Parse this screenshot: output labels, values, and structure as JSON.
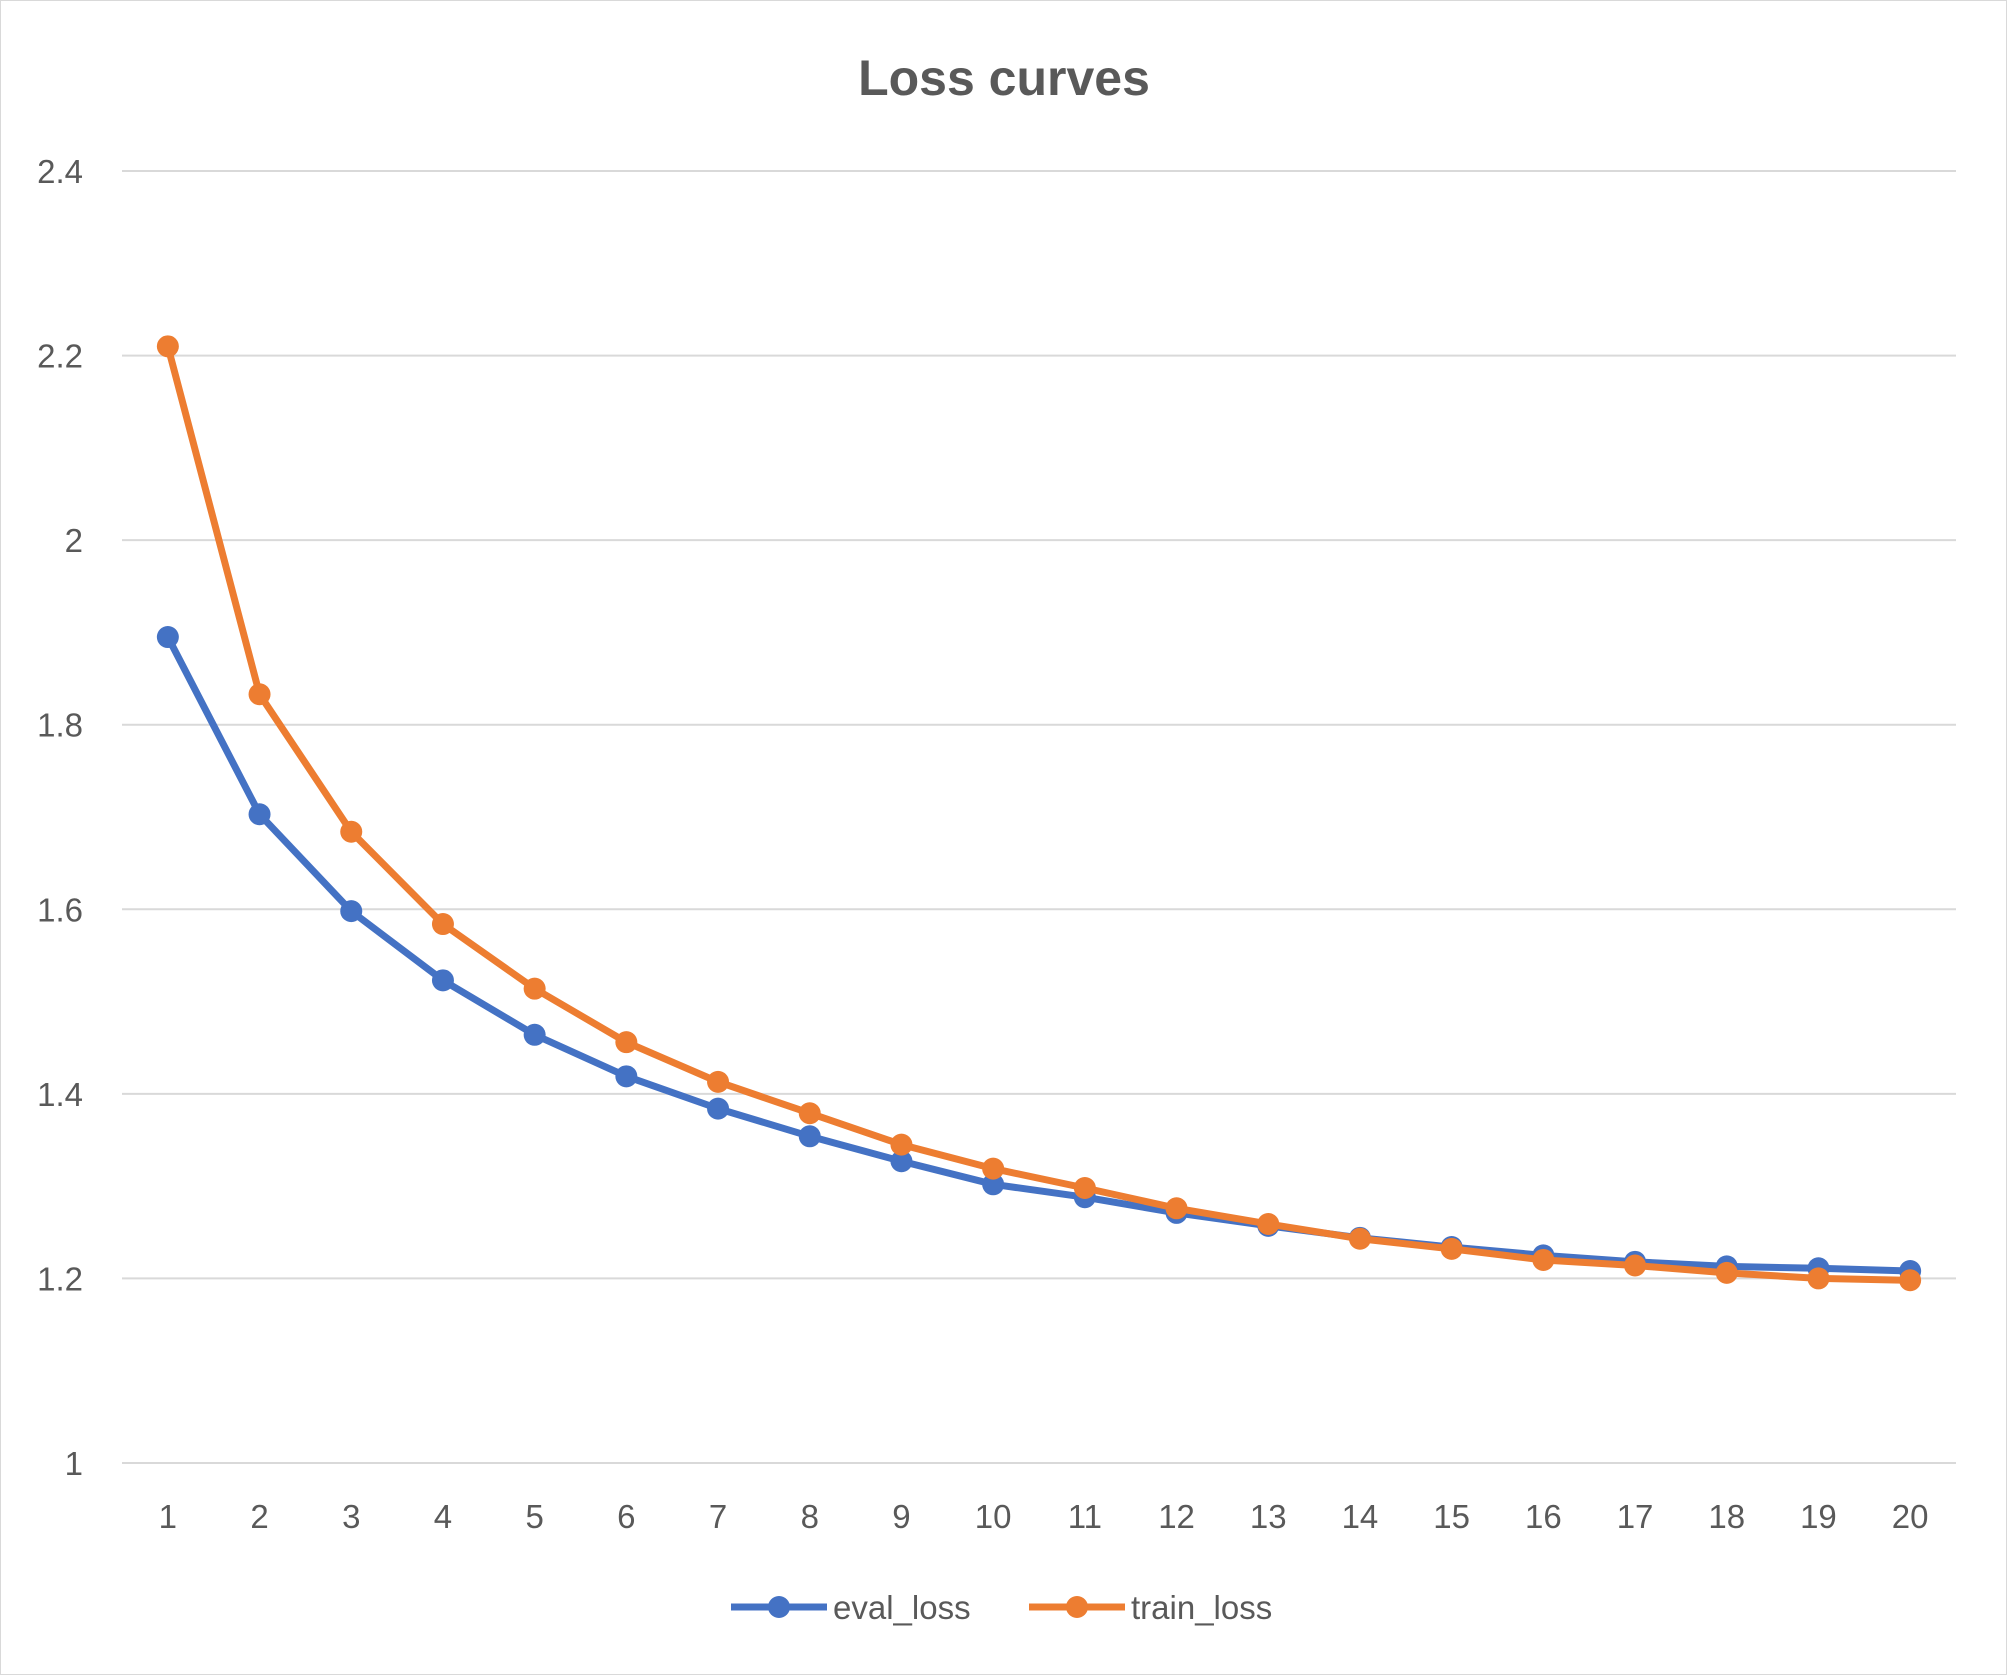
{
  "chart_data": {
    "type": "line",
    "title": "Loss curves",
    "xlabel": "",
    "ylabel": "",
    "categories": [
      "1",
      "2",
      "3",
      "4",
      "5",
      "6",
      "7",
      "8",
      "9",
      "10",
      "11",
      "12",
      "13",
      "14",
      "15",
      "16",
      "17",
      "18",
      "19",
      "20"
    ],
    "ylim": [
      1,
      2.4
    ],
    "yticks": [
      1,
      1.2,
      1.4,
      1.6,
      1.8,
      2,
      2.2,
      2.4
    ],
    "ytick_labels": [
      "1",
      "1.2",
      "1.4",
      "1.6",
      "1.8",
      "2",
      "2.2",
      "2.4"
    ],
    "grid": true,
    "legend_position": "bottom",
    "series": [
      {
        "name": "eval_loss",
        "color": "#4472C4",
        "values": [
          1.895,
          1.703,
          1.598,
          1.523,
          1.464,
          1.419,
          1.384,
          1.354,
          1.327,
          1.302,
          1.288,
          1.271,
          1.257,
          1.244,
          1.234,
          1.225,
          1.218,
          1.213,
          1.211,
          1.208
        ]
      },
      {
        "name": "train_loss",
        "color": "#ED7D31",
        "values": [
          2.21,
          1.833,
          1.684,
          1.584,
          1.514,
          1.456,
          1.413,
          1.379,
          1.345,
          1.319,
          1.298,
          1.276,
          1.259,
          1.243,
          1.232,
          1.22,
          1.214,
          1.206,
          1.2,
          1.198
        ]
      }
    ]
  }
}
